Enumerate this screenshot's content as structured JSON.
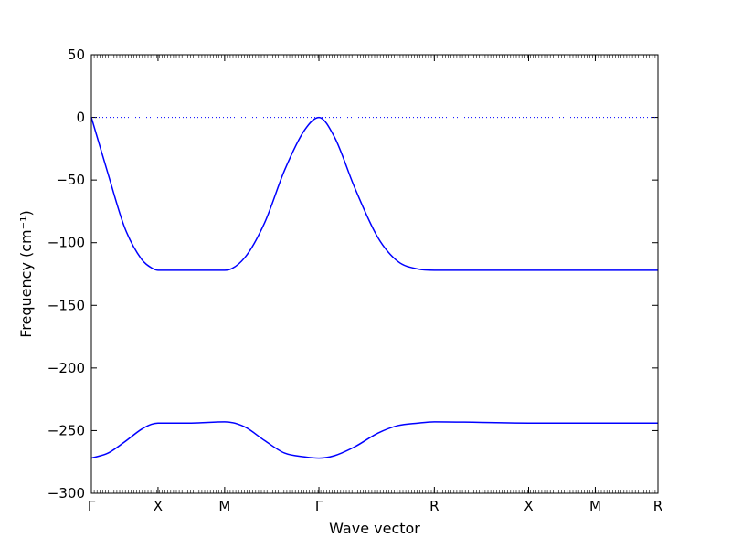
{
  "chart_data": {
    "type": "line",
    "title": "",
    "xlabel": "Wave vector",
    "ylabel": "Frequency (cm⁻¹)",
    "ylim": [
      -300,
      50
    ],
    "yticks": [
      50,
      0,
      -50,
      -100,
      -150,
      -200,
      -250,
      -300
    ],
    "xlim": [
      0,
      8.5
    ],
    "xticks": [
      {
        "x": 0,
        "label": "Γ"
      },
      {
        "x": 1,
        "label": "X"
      },
      {
        "x": 2,
        "label": "M"
      },
      {
        "x": 3.414,
        "label": "Γ"
      },
      {
        "x": 5.146,
        "label": "R"
      },
      {
        "x": 6.56,
        "label": "X"
      },
      {
        "x": 7.56,
        "label": "M"
      },
      {
        "x": 8.56,
        "label": "R"
      }
    ],
    "zero_line": {
      "y": 0,
      "style": "dotted",
      "color": "#0000ff"
    },
    "grid": false,
    "series": [
      {
        "color": "#0000ff",
        "x": [
          0,
          0.25,
          0.5,
          0.75,
          0.9,
          1.0,
          1.5,
          2.0,
          2.3,
          2.6,
          2.9,
          3.2,
          3.414,
          3.65,
          3.95,
          4.3,
          4.6,
          4.9,
          5.146,
          6.56,
          7.56,
          8.5
        ],
        "y": [
          0,
          -45,
          -88,
          -113,
          -120,
          -122,
          -122,
          -122,
          -112,
          -84,
          -42,
          -10,
          0,
          -16,
          -56,
          -96,
          -115,
          -121,
          -122,
          -122,
          -122,
          -122
        ]
      },
      {
        "color": "#0000ff",
        "x": [
          0,
          0.25,
          0.5,
          0.75,
          0.9,
          1.0,
          1.5,
          2.0,
          2.3,
          2.6,
          2.9,
          3.2,
          3.414,
          3.65,
          3.95,
          4.3,
          4.6,
          4.9,
          5.146,
          6.56,
          7.56,
          8.5
        ],
        "y": [
          -272,
          -268,
          -259,
          -249,
          -245,
          -244,
          -244,
          -243,
          -247,
          -258,
          -268,
          -271,
          -272,
          -270,
          -263,
          -252,
          -246,
          -244,
          -243,
          -244,
          -244,
          -244
        ]
      }
    ]
  }
}
